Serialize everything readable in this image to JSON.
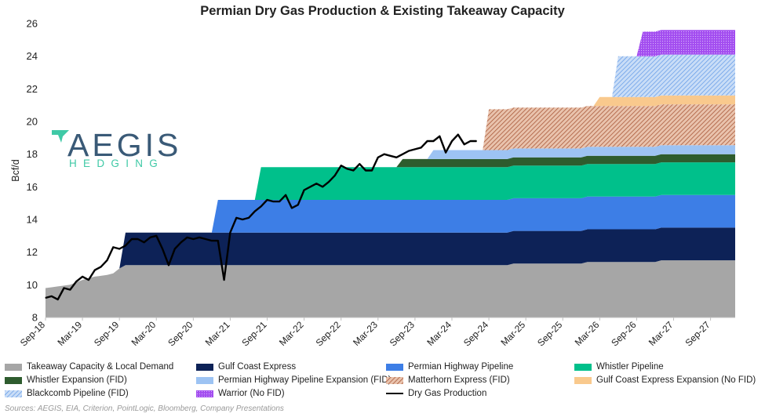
{
  "chart_data": {
    "type": "area",
    "title": "Permian Dry Gas Production & Existing Takeaway Capacity",
    "ylabel": "Bcf/d",
    "xlabel": "",
    "ylim": [
      8,
      26
    ],
    "yticks": [
      8,
      10,
      12,
      14,
      16,
      18,
      20,
      22,
      24,
      26
    ],
    "xlim": [
      "2018-09",
      "2028-01"
    ],
    "xticks": [
      "Sep-18",
      "Mar-19",
      "Sep-19",
      "Mar-20",
      "Sep-20",
      "Mar-21",
      "Sep-21",
      "Mar-22",
      "Sep-22",
      "Mar-23",
      "Sep-23",
      "Mar-24",
      "Sep-24",
      "Mar-25",
      "Sep-25",
      "Mar-26",
      "Sep-26",
      "Mar-27",
      "Sep-27"
    ],
    "grid": false,
    "legend_position": "bottom",
    "stack_series": [
      {
        "name": "Takeaway Capacity & Local Demand",
        "color": "#a6a6a6",
        "pattern": "solid",
        "points": [
          [
            "2018-09",
            9.8
          ],
          [
            "2019-01",
            10.0
          ],
          [
            "2019-03",
            10.3
          ],
          [
            "2019-05",
            10.5
          ],
          [
            "2019-07",
            10.6
          ],
          [
            "2019-08",
            10.7
          ],
          [
            "2019-09",
            11.0
          ],
          [
            "2019-10",
            11.2
          ],
          [
            "2020-06",
            11.2
          ],
          [
            "2021-06",
            11.2
          ],
          [
            "2023-06",
            11.2
          ],
          [
            "2024-12",
            11.2
          ],
          [
            "2025-01",
            11.3
          ],
          [
            "2025-12",
            11.3
          ],
          [
            "2026-01",
            11.4
          ],
          [
            "2026-12",
            11.4
          ],
          [
            "2027-01",
            11.5
          ],
          [
            "2028-01",
            11.5
          ]
        ]
      },
      {
        "name": "Gulf Coast Express",
        "color": "#0d2257",
        "pattern": "solid",
        "points": [
          [
            "2019-09",
            0
          ],
          [
            "2019-10",
            2.0
          ],
          [
            "2024-12",
            2.0
          ],
          [
            "2025-01",
            2.0
          ],
          [
            "2028-01",
            2.0
          ]
        ]
      },
      {
        "name": "Permian Highway Pipeline",
        "color": "#3d7ee6",
        "pattern": "solid",
        "points": [
          [
            "2020-12",
            0
          ],
          [
            "2021-01",
            2.0
          ],
          [
            "2028-01",
            2.0
          ]
        ]
      },
      {
        "name": "Whistler Pipeline",
        "color": "#00c08b",
        "pattern": "solid",
        "points": [
          [
            "2021-07",
            0
          ],
          [
            "2021-08",
            2.0
          ],
          [
            "2028-01",
            2.0
          ]
        ]
      },
      {
        "name": "Whistler Expansion (FID)",
        "color": "#2e5c2e",
        "pattern": "solid",
        "points": [
          [
            "2023-06",
            0
          ],
          [
            "2023-07",
            0.5
          ],
          [
            "2028-01",
            0.5
          ]
        ]
      },
      {
        "name": "Permian Highway Pipeline Expansion (FID)",
        "color": "#9dc3f3",
        "pattern": "solid",
        "points": [
          [
            "2023-11",
            0
          ],
          [
            "2023-12",
            0.55
          ],
          [
            "2028-01",
            0.55
          ]
        ]
      },
      {
        "name": "Matterhorn Express (FID)",
        "color": "#c6825f",
        "pattern": "hatch",
        "points": [
          [
            "2024-08",
            0
          ],
          [
            "2024-09",
            2.5
          ],
          [
            "2028-01",
            2.5
          ]
        ]
      },
      {
        "name": "Gulf Coast Express Expansion (No FID)",
        "color": "#f9c98d",
        "pattern": "solid",
        "points": [
          [
            "2026-02",
            0
          ],
          [
            "2026-03",
            0.55
          ],
          [
            "2028-01",
            0.55
          ]
        ]
      },
      {
        "name": "Blackcomb Pipeline (FID)",
        "color": "#7fb0ee",
        "pattern": "hatch",
        "points": [
          [
            "2026-05",
            0
          ],
          [
            "2026-06",
            2.5
          ],
          [
            "2028-01",
            2.5
          ]
        ]
      },
      {
        "name": "Warrior (No FID)",
        "color": "#a34df0",
        "pattern": "dots",
        "points": [
          [
            "2026-09",
            0
          ],
          [
            "2026-10",
            1.5
          ],
          [
            "2028-01",
            1.5
          ]
        ]
      }
    ],
    "line_series": {
      "name": "Dry Gas Production",
      "color": "#000000",
      "x": [
        "2018-09",
        "2018-10",
        "2018-11",
        "2018-12",
        "2019-01",
        "2019-02",
        "2019-03",
        "2019-04",
        "2019-05",
        "2019-06",
        "2019-07",
        "2019-08",
        "2019-09",
        "2019-10",
        "2019-11",
        "2019-12",
        "2020-01",
        "2020-02",
        "2020-03",
        "2020-04",
        "2020-05",
        "2020-06",
        "2020-07",
        "2020-08",
        "2020-09",
        "2020-10",
        "2020-11",
        "2020-12",
        "2021-01",
        "2021-02",
        "2021-03",
        "2021-04",
        "2021-05",
        "2021-06",
        "2021-07",
        "2021-08",
        "2021-09",
        "2021-10",
        "2021-11",
        "2021-12",
        "2022-01",
        "2022-02",
        "2022-03",
        "2022-04",
        "2022-05",
        "2022-06",
        "2022-07",
        "2022-08",
        "2022-09",
        "2022-10",
        "2022-11",
        "2022-12",
        "2023-01",
        "2023-02",
        "2023-03",
        "2023-04",
        "2023-05",
        "2023-06",
        "2023-07",
        "2023-08",
        "2023-09",
        "2023-10",
        "2023-11",
        "2023-12",
        "2024-01",
        "2024-02",
        "2024-03",
        "2024-04",
        "2024-05",
        "2024-06",
        "2024-07"
      ],
      "y": [
        9.2,
        9.3,
        9.1,
        9.8,
        9.7,
        10.2,
        10.5,
        10.3,
        10.9,
        11.1,
        11.5,
        12.3,
        12.2,
        12.4,
        12.8,
        12.8,
        12.6,
        12.9,
        13.0,
        12.2,
        11.2,
        12.2,
        12.6,
        12.9,
        12.8,
        12.9,
        12.8,
        12.7,
        12.7,
        10.3,
        13.2,
        14.1,
        14.0,
        14.1,
        14.5,
        14.8,
        15.2,
        15.1,
        15.1,
        15.5,
        14.7,
        14.9,
        15.8,
        16.0,
        16.2,
        16.0,
        16.3,
        16.7,
        17.3,
        17.1,
        17.0,
        17.4,
        17.0,
        17.0,
        17.8,
        18.0,
        17.9,
        17.8,
        18.0,
        18.2,
        18.3,
        18.4,
        18.8,
        18.8,
        19.1,
        18.1,
        18.8,
        19.2,
        18.6,
        18.8,
        18.8
      ]
    }
  },
  "legend": [
    {
      "label": "Takeaway Capacity & Local Demand"
    },
    {
      "label": "Gulf Coast Express"
    },
    {
      "label": "Permian Highway Pipeline"
    },
    {
      "label": "Whistler Pipeline"
    },
    {
      "label": "Whistler Expansion (FID)"
    },
    {
      "label": "Permian Highway Pipeline Expansion (FID)"
    },
    {
      "label": "Matterhorn Express (FID)"
    },
    {
      "label": "Gulf Coast Express Expansion (No FID)"
    },
    {
      "label": "Blackcomb Pipeline (FID)"
    },
    {
      "label": "Warrior (No FID)"
    },
    {
      "label": "Dry Gas Production"
    }
  ],
  "logo": {
    "word": "AEGIS",
    "sub": "HEDGING"
  },
  "source_note": "Sources: AEGIS, EIA, Criterion, PointLogic, Bloomberg, Company Presentations"
}
